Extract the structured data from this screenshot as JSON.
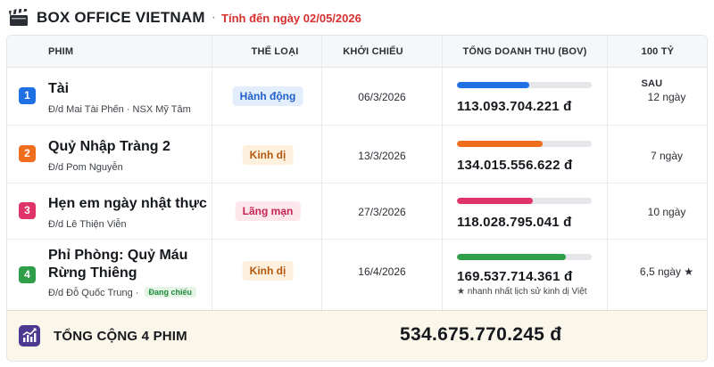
{
  "header": {
    "icon": "clapperboard-icon",
    "brand": "BOX OFFICE VIETNAM",
    "separator": "·",
    "as_of": "Tính đến ngày 02/05/2026"
  },
  "columns": {
    "film": "PHIM",
    "genre": "THỂ LOẠI",
    "release": "KHỞI CHIẾU",
    "gross": "TỔNG DOANH THU (BOV)",
    "milestone": "100 TỶ SAU"
  },
  "films": [
    {
      "rank": "1",
      "rank_color": "#1f6fe5",
      "title": "Tài",
      "credit": "Đ/d Mai Tài Phến · NSX Mỹ Tâm",
      "genre": "Hành động",
      "genre_bg": "#e3eefc",
      "genre_fg": "#1f5fc8",
      "release": "06/3/2026",
      "gross": "113.093.704.221 đ",
      "gross_value": 113093704221,
      "bar_color": "#1f6fe5",
      "days": "12 ngày"
    },
    {
      "rank": "2",
      "rank_color": "#f06d1d",
      "title": "Quỷ Nhập Tràng 2",
      "credit": "Đ/d Pom Nguyễn",
      "genre": "Kinh dị",
      "genre_bg": "#fdf0dd",
      "genre_fg": "#b3570f",
      "release": "13/3/2026",
      "gross": "134.015.556.622 đ",
      "gross_value": 134015556622,
      "bar_color": "#f06d1d",
      "days": "7 ngày"
    },
    {
      "rank": "3",
      "rank_color": "#e0336a",
      "title": "Hẹn em ngày nhật thực",
      "credit": "Đ/d Lê Thiện Viễn",
      "genre": "Lãng mạn",
      "genre_bg": "#fde6ec",
      "genre_fg": "#c42555",
      "release": "27/3/2026",
      "gross": "118.028.795.041 đ",
      "gross_value": 118028795041,
      "bar_color": "#e0336a",
      "days": "10 ngày"
    },
    {
      "rank": "4",
      "rank_color": "#2f9e48",
      "title": "Phỉ Phòng: Quỷ Máu Rừng Thiêng",
      "title_lines": [
        "Phỉ Phòng: Quỷ Máu",
        "Rừng Thiêng"
      ],
      "credit": "Đ/d Đỗ Quốc Trung ·",
      "badge": "Đang chiếu",
      "genre": "Kinh dị",
      "genre_bg": "#fdf0dd",
      "genre_fg": "#b3570f",
      "release": "16/4/2026",
      "gross": "169.537.714.361 đ",
      "gross_value": 169537714361,
      "bar_color": "#2f9e48",
      "note": "★ nhanh nhất lịch sử kinh dị Việt",
      "days": "6,5 ngày ★"
    }
  ],
  "bar_max": 210000000000,
  "footer": {
    "icon": "trending-chart-icon",
    "label": "TỔNG CỘNG 4 PHIM",
    "total": "534.675.770.245 đ"
  }
}
